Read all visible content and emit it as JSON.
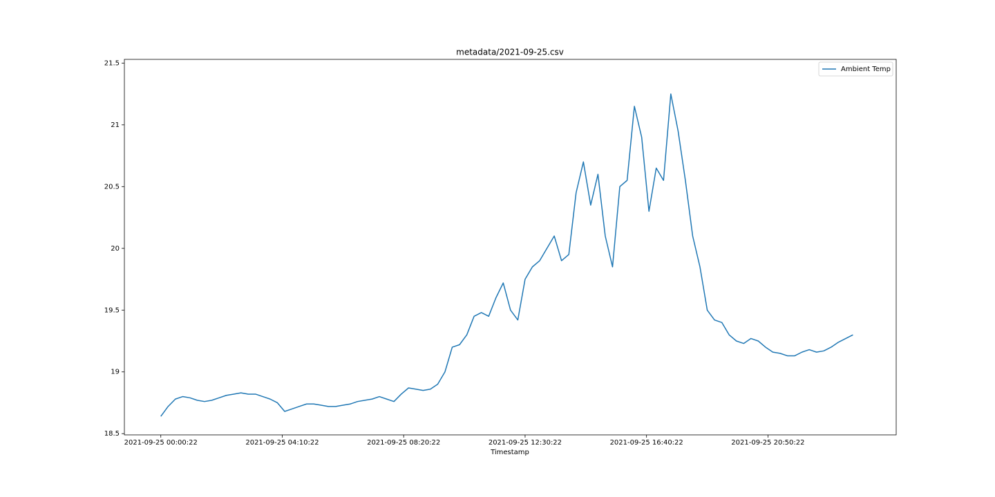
{
  "chart_data": {
    "type": "line",
    "title": "metadata/2021-09-25.csv",
    "x_label": "Timestamp",
    "x": [
      "2021-09-25 00:00:22",
      "2021-09-25 00:15:22",
      "2021-09-25 00:30:22",
      "2021-09-25 00:45:22",
      "2021-09-25 01:00:22",
      "2021-09-25 01:15:22",
      "2021-09-25 01:30:22",
      "2021-09-25 01:45:22",
      "2021-09-25 02:00:22",
      "2021-09-25 02:15:22",
      "2021-09-25 02:30:22",
      "2021-09-25 02:45:22",
      "2021-09-25 03:00:22",
      "2021-09-25 03:15:22",
      "2021-09-25 03:30:22",
      "2021-09-25 03:45:22",
      "2021-09-25 04:00:22",
      "2021-09-25 04:15:22",
      "2021-09-25 04:30:22",
      "2021-09-25 04:45:22",
      "2021-09-25 05:00:22",
      "2021-09-25 05:15:22",
      "2021-09-25 05:30:22",
      "2021-09-25 05:45:22",
      "2021-09-25 06:00:22",
      "2021-09-25 06:15:22",
      "2021-09-25 06:30:22",
      "2021-09-25 06:45:22",
      "2021-09-25 07:00:22",
      "2021-09-25 07:15:22",
      "2021-09-25 07:30:22",
      "2021-09-25 07:45:22",
      "2021-09-25 08:00:22",
      "2021-09-25 08:15:22",
      "2021-09-25 08:30:22",
      "2021-09-25 08:45:22",
      "2021-09-25 09:00:22",
      "2021-09-25 09:15:22",
      "2021-09-25 09:30:22",
      "2021-09-25 09:45:22",
      "2021-09-25 10:00:22",
      "2021-09-25 10:15:22",
      "2021-09-25 10:30:22",
      "2021-09-25 10:45:22",
      "2021-09-25 11:00:22",
      "2021-09-25 11:15:22",
      "2021-09-25 11:30:22",
      "2021-09-25 11:45:22",
      "2021-09-25 12:00:22",
      "2021-09-25 12:15:22",
      "2021-09-25 12:30:22",
      "2021-09-25 12:45:22",
      "2021-09-25 13:00:22",
      "2021-09-25 13:15:22",
      "2021-09-25 13:30:22",
      "2021-09-25 13:45:22",
      "2021-09-25 14:00:22",
      "2021-09-25 14:15:22",
      "2021-09-25 14:30:22",
      "2021-09-25 14:45:22",
      "2021-09-25 15:00:22",
      "2021-09-25 15:15:22",
      "2021-09-25 15:30:22",
      "2021-09-25 15:45:22",
      "2021-09-25 16:00:22",
      "2021-09-25 16:15:22",
      "2021-09-25 16:30:22",
      "2021-09-25 16:45:22",
      "2021-09-25 17:00:22",
      "2021-09-25 17:15:22",
      "2021-09-25 17:30:22",
      "2021-09-25 17:45:22",
      "2021-09-25 18:00:22",
      "2021-09-25 18:15:22",
      "2021-09-25 18:30:22",
      "2021-09-25 18:45:22",
      "2021-09-25 19:00:22",
      "2021-09-25 19:15:22",
      "2021-09-25 19:30:22",
      "2021-09-25 19:45:22",
      "2021-09-25 20:00:22",
      "2021-09-25 20:15:22",
      "2021-09-25 20:30:22",
      "2021-09-25 20:45:22",
      "2021-09-25 21:00:22",
      "2021-09-25 21:15:22",
      "2021-09-25 21:30:22",
      "2021-09-25 21:45:22",
      "2021-09-25 22:00:22",
      "2021-09-25 22:15:22",
      "2021-09-25 22:30:22",
      "2021-09-25 22:45:22",
      "2021-09-25 23:00:22",
      "2021-09-25 23:15:22",
      "2021-09-25 23:30:22",
      "2021-09-25 23:45:22"
    ],
    "series": [
      {
        "name": "Ambient Temp",
        "color": "#1f77b4",
        "values": [
          18.64,
          18.72,
          18.78,
          18.8,
          18.79,
          18.77,
          18.76,
          18.77,
          18.79,
          18.81,
          18.82,
          18.83,
          18.82,
          18.82,
          18.8,
          18.78,
          18.75,
          18.68,
          18.7,
          18.72,
          18.74,
          18.74,
          18.73,
          18.72,
          18.72,
          18.73,
          18.74,
          18.76,
          18.77,
          18.78,
          18.8,
          18.78,
          18.76,
          18.82,
          18.87,
          18.86,
          18.85,
          18.86,
          18.9,
          19.0,
          19.2,
          19.22,
          19.3,
          19.45,
          19.48,
          19.45,
          19.6,
          19.72,
          19.5,
          19.42,
          19.75,
          19.85,
          19.9,
          20.0,
          20.1,
          19.9,
          19.95,
          20.45,
          20.7,
          20.35,
          20.6,
          20.1,
          19.85,
          20.5,
          20.55,
          21.15,
          20.9,
          20.3,
          20.65,
          20.55,
          21.25,
          20.95,
          20.55,
          20.1,
          19.85,
          19.5,
          19.42,
          19.4,
          19.3,
          19.25,
          19.23,
          19.27,
          19.25,
          19.2,
          19.16,
          19.15,
          19.13,
          19.13,
          19.16,
          19.18,
          19.16,
          19.17,
          19.2,
          19.24,
          19.27,
          19.3
        ]
      }
    ],
    "xlim": [
      "2021-09-24 22:45:22",
      "2021-09-26 01:14:22"
    ],
    "xticks": [
      "2021-09-25 00:00:22",
      "2021-09-25 04:10:22",
      "2021-09-25 08:20:22",
      "2021-09-25 12:30:22",
      "2021-09-25 16:40:22",
      "2021-09-25 20:50:22"
    ],
    "ylim": [
      18.49,
      21.53
    ],
    "yticks": [
      18.5,
      19.0,
      19.5,
      20.0,
      20.5,
      21.0,
      21.5
    ],
    "legend": "upper right",
    "grid": false
  }
}
